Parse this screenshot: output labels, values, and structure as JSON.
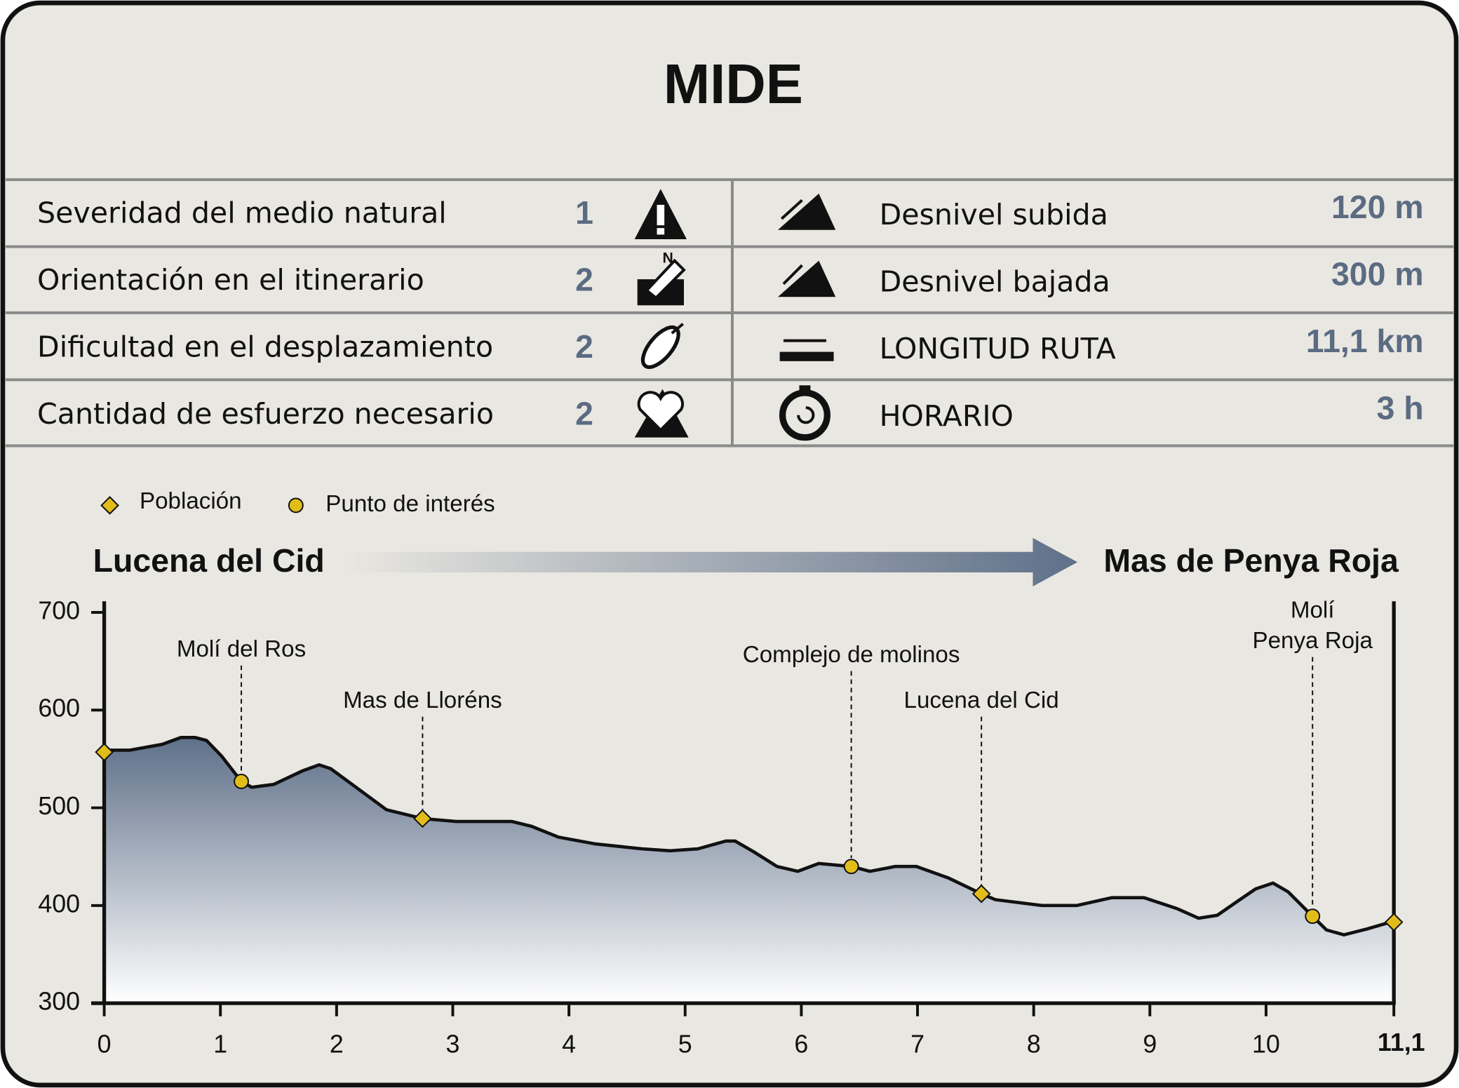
{
  "title": "MIDE",
  "mide": {
    "rows": [
      {
        "label": "Severidad del medio natural",
        "value": "1"
      },
      {
        "label": "Orientación en el itinerario",
        "value": "2"
      },
      {
        "label": "Dificultad en el desplazamiento",
        "value": "2"
      },
      {
        "label": "Cantidad de esfuerzo necesario",
        "value": "2"
      }
    ]
  },
  "stats": {
    "rows": [
      {
        "label": "Desnivel subida",
        "value": "120 m"
      },
      {
        "label": "Desnivel bajada",
        "value": "300 m"
      },
      {
        "label": "LONGITUD RUTA",
        "value": "11,1 km"
      },
      {
        "label": "HORARIO",
        "value": "3 h"
      }
    ]
  },
  "chart_data": {
    "type": "area",
    "start": "Lucena del Cid",
    "end": "Mas de Penya Roja",
    "x": [
      0,
      0.22,
      0.5,
      0.66,
      0.78,
      0.88,
      1.01,
      1.18,
      1.27,
      1.46,
      1.71,
      1.85,
      1.95,
      2.19,
      2.43,
      2.74,
      3.03,
      3.51,
      3.68,
      3.91,
      4.23,
      4.63,
      4.87,
      5.11,
      5.35,
      5.43,
      5.59,
      5.79,
      5.97,
      6.15,
      6.43,
      6.59,
      6.81,
      6.99,
      7.27,
      7.55,
      7.67,
      8.07,
      8.37,
      8.67,
      8.95,
      9.23,
      9.42,
      9.58,
      9.75,
      9.91,
      10.06,
      10.19,
      10.4,
      10.52,
      10.67,
      10.87,
      11.1
    ],
    "series": [
      {
        "color": "#5f7089",
        "values": [
          559,
          559,
          565,
          572,
          572,
          569,
          553,
          527,
          521,
          524,
          538,
          544,
          540,
          519,
          498,
          489,
          486,
          486,
          481,
          470,
          463,
          458,
          456,
          458,
          466,
          466,
          455,
          440,
          435,
          443,
          440,
          435,
          440,
          440,
          428,
          412,
          406,
          400,
          400,
          408,
          408,
          397,
          387,
          390,
          404,
          417,
          423,
          414,
          389,
          375,
          370,
          376,
          384
        ]
      }
    ],
    "xlim": [
      0,
      11.1
    ],
    "ylim": [
      300,
      700
    ],
    "xticks": [
      0,
      1,
      2,
      3,
      4,
      5,
      6,
      7,
      8,
      9,
      10,
      {
        "value": 11.1,
        "label": "11,1"
      }
    ],
    "yticks": [
      300,
      400,
      500,
      600,
      700
    ],
    "markers": [
      {
        "name": "Población",
        "shape": "diamond",
        "color": "#e2bd1a",
        "points": [
          {
            "x": 0,
            "y": 557
          },
          {
            "x": 2.74,
            "y": 489,
            "label": "Mas de Lloréns"
          },
          {
            "x": 7.55,
            "y": 412,
            "label": "Lucena del Cid"
          },
          {
            "x": 11.1,
            "y": 383
          }
        ]
      },
      {
        "name": "Punto de interés",
        "shape": "circle",
        "color": "#e2bd1a",
        "points": [
          {
            "x": 1.18,
            "y": 527,
            "label": "Molí del Ros"
          },
          {
            "x": 6.43,
            "y": 440,
            "label": "Complejo de molinos"
          },
          {
            "x": 10.4,
            "y": 389,
            "label": [
              "Molí",
              "Penya Roja"
            ]
          }
        ]
      }
    ]
  }
}
